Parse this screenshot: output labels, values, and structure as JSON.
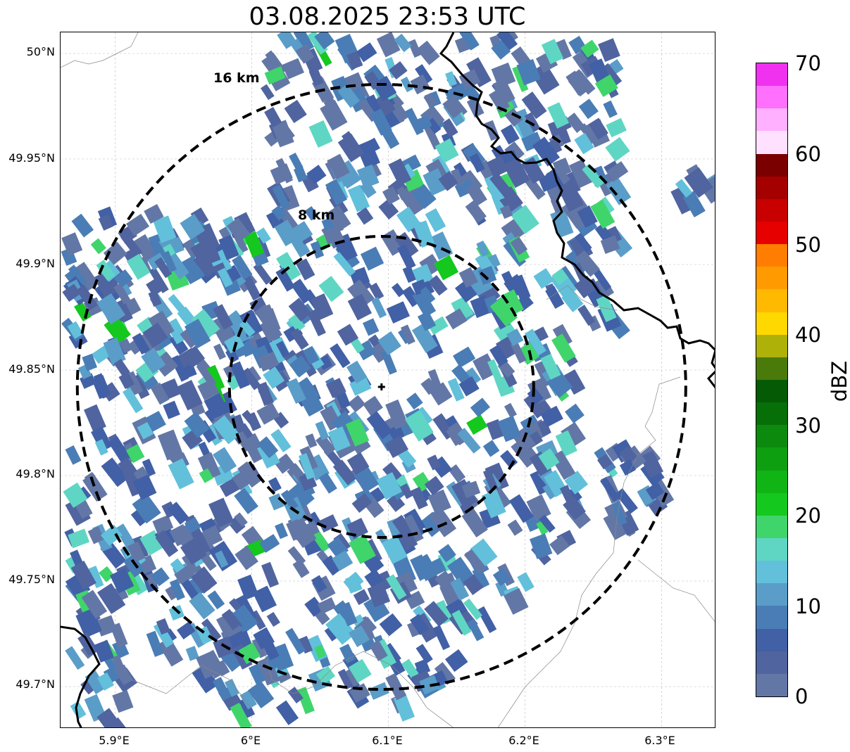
{
  "title": "03.08.2025 23:53 UTC",
  "map": {
    "y_ticks": [
      "50°N",
      "49.95°N",
      "49.9°N",
      "49.85°N",
      "49.8°N",
      "49.75°N",
      "49.7°N"
    ],
    "x_ticks": [
      "5.9°E",
      "6°E",
      "6.1°E",
      "6.2°E",
      "6.3°E"
    ],
    "ring_labels": [
      "16 km",
      "8 km"
    ],
    "radar_center": {
      "lon": 6.095,
      "lat": 49.842
    },
    "bounds": {
      "lon": [
        5.86,
        6.34
      ],
      "lat": [
        49.68,
        50.01
      ]
    }
  },
  "colorbar": {
    "label": "dBZ",
    "ticks": [
      "0",
      "10",
      "20",
      "30",
      "40",
      "50",
      "60",
      "70"
    ],
    "colors": [
      "#6377a6",
      "#5064a0",
      "#4160a6",
      "#4a7db5",
      "#5a9dc8",
      "#62c0db",
      "#5fd6c3",
      "#3fd56b",
      "#14c81e",
      "#10b414",
      "#0e9f10",
      "#0b8a0e",
      "#076f08",
      "#055a06",
      "#4a7a09",
      "#aeb107",
      "#ffd800",
      "#ffb900",
      "#ff9b00",
      "#ff7d00",
      "#e60000",
      "#c80000",
      "#a40000",
      "#7a0000",
      "#ffe0ff",
      "#ffb0ff",
      "#ff70ff",
      "#f032f0"
    ]
  }
}
